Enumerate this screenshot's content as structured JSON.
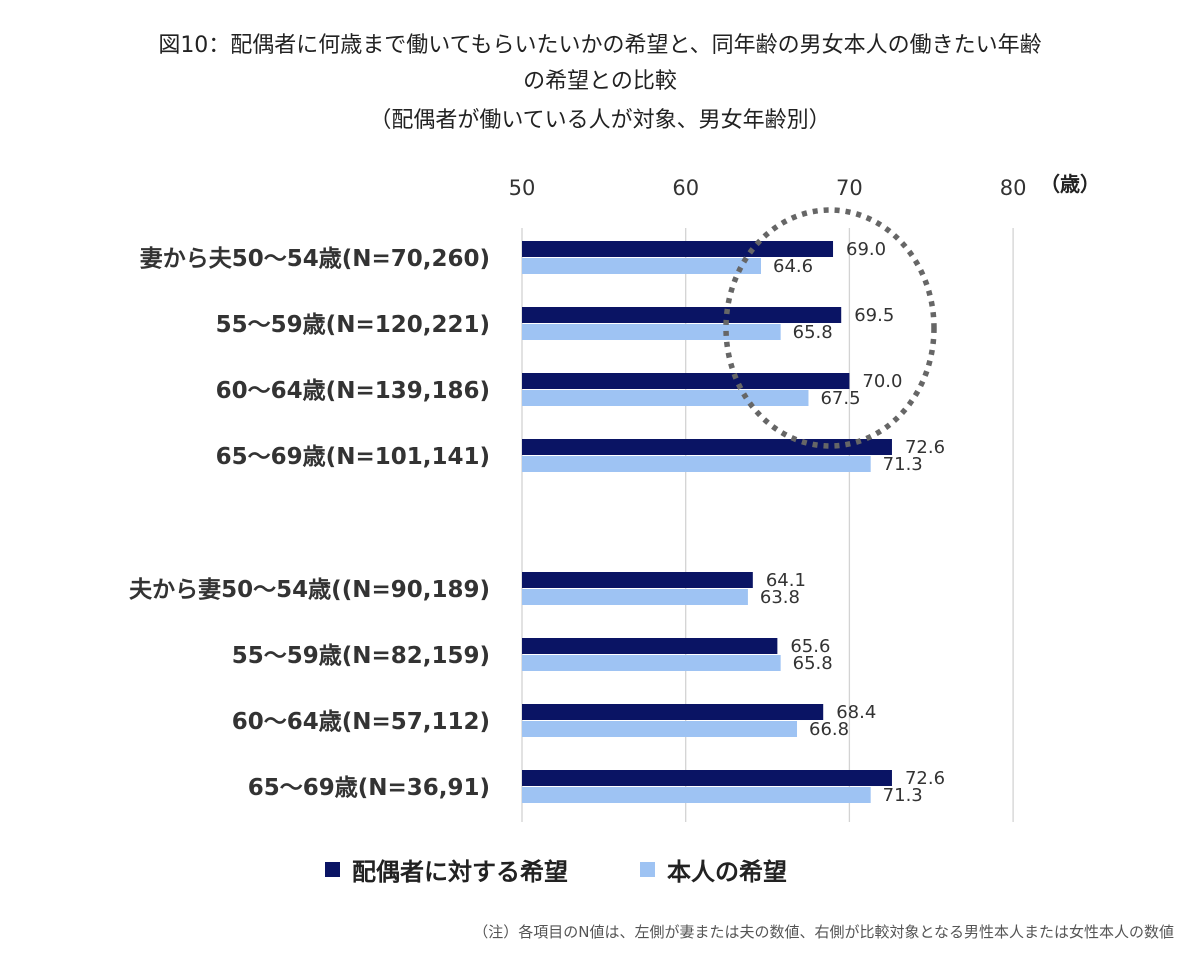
{
  "title": {
    "line1": "図10：配偶者に何歳まで働いてもらいたいかの希望と、同年齢の男女本人の働きたい年齢",
    "line2": "の希望との比較",
    "line3": "（配偶者が働いている人が対象、男女年齢別）"
  },
  "chart_data": {
    "type": "bar",
    "orientation": "horizontal",
    "axis_unit": "（歳）",
    "xlim": [
      50,
      80
    ],
    "xticks": [
      50,
      60,
      70,
      80
    ],
    "xtick_labels": [
      "50",
      "60",
      "70",
      "80"
    ],
    "categories": [
      "妻から夫50〜54歳(N=70,260)",
      "55〜59歳(N=120,221)",
      "60〜64歳(N=139,186)",
      "65〜69歳(N=101,141)",
      "夫から妻50〜54歳((N=90,189)",
      "55〜59歳(N=82,159)",
      "60〜64歳(N=57,112)",
      "65〜69歳(N=36,91)"
    ],
    "series": [
      {
        "name": "配偶者に対する希望",
        "color": "#0a1464",
        "values": [
          69.0,
          69.5,
          70.0,
          72.6,
          64.1,
          65.6,
          68.4,
          72.6
        ],
        "labels": [
          "69.0",
          "69.5",
          "70.0",
          "72.6",
          "64.1",
          "65.6",
          "68.4",
          "72.6"
        ]
      },
      {
        "name": "本人の希望",
        "color": "#9ec3f3",
        "values": [
          64.6,
          65.8,
          67.5,
          71.3,
          63.8,
          65.8,
          66.8,
          71.3
        ],
        "labels": [
          "64.6",
          "65.8",
          "67.5",
          "71.3",
          "63.8",
          "65.8",
          "66.8",
          "71.3"
        ]
      }
    ],
    "annotation": "dotted ellipse highlighting first three groups (wives about husbands, 50–64)"
  },
  "legend": {
    "spouse_label": "配偶者に対する希望",
    "self_label": "本人の希望"
  },
  "note": "（注）各項目のN値は、左側が妻または夫の数値、右側が比較対象となる男性本人または女性本人の数値"
}
